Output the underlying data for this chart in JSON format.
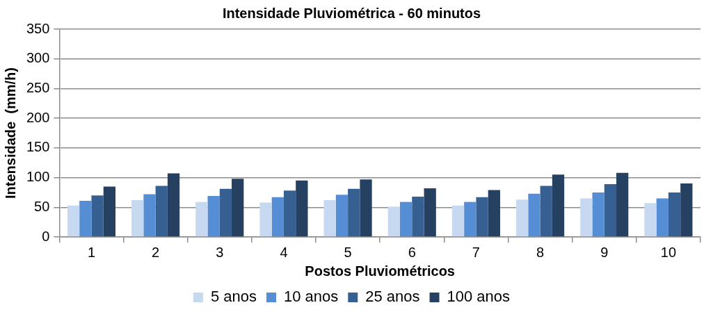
{
  "chart_data": {
    "type": "bar",
    "title": "Intensidade Pluviométrica - 60 minutos",
    "xlabel": "Postos Pluviométricos",
    "ylabel": "Intensidade  (mm/h)",
    "categories": [
      "1",
      "2",
      "3",
      "4",
      "5",
      "6",
      "7",
      "8",
      "9",
      "10"
    ],
    "series": [
      {
        "name": "5 anos",
        "color": "#c6d9f1",
        "values": [
          53,
          62,
          59,
          58,
          62,
          51,
          53,
          63,
          65,
          57
        ]
      },
      {
        "name": "10 anos",
        "color": "#558ed5",
        "values": [
          61,
          72,
          69,
          67,
          71,
          59,
          59,
          73,
          75,
          65
        ]
      },
      {
        "name": "25 anos",
        "color": "#376092",
        "values": [
          70,
          86,
          81,
          78,
          81,
          68,
          67,
          86,
          89,
          75
        ]
      },
      {
        "name": "100 anos",
        "color": "#254061",
        "values": [
          85,
          107,
          98,
          95,
          97,
          82,
          79,
          105,
          108,
          90
        ]
      }
    ],
    "ylim": [
      0,
      350
    ],
    "yticks": [
      0,
      50,
      100,
      150,
      200,
      250,
      300,
      350
    ],
    "grid": "y",
    "legend": "bottom"
  }
}
